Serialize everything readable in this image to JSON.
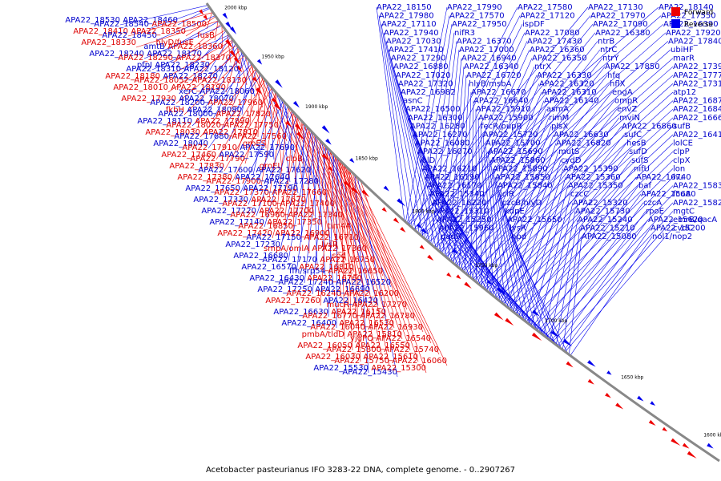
{
  "caption": "Acetobacter pasteurianus IFO 3283-22 DNA, complete genome. - 0..2907267",
  "legend": [
    {
      "label": "Forward",
      "color": "#ee0000"
    },
    {
      "label": "Reverse",
      "color": "#0000ee"
    }
  ],
  "ticks": [
    "2000 kbp",
    "1950 kbp",
    "1900 kbp",
    "1850 kbp",
    "1800 kbp",
    "1750 kbp",
    "1700 kbp",
    "1650 kbp",
    "1600 kbp"
  ],
  "colors": {
    "forward": "#ee0000",
    "reverse": "#0000ee",
    "backbone": "#888888",
    "forward_text": "#dd0000",
    "reverse_text": "#0000cc"
  },
  "labels": [
    {
      "t": "APA22_18530",
      "s": "r",
      "a": 0.002
    },
    {
      "t": "APA22_18540",
      "s": "r",
      "a": 0.01
    },
    {
      "t": "APA22_18460",
      "s": "r",
      "a": 0.012
    },
    {
      "t": "APA22_18500",
      "s": "f",
      "a": 0.02
    },
    {
      "t": "APA22_18410",
      "s": "f",
      "a": 0.022
    },
    {
      "t": "APA22_18450",
      "s": "r",
      "a": 0.03
    },
    {
      "t": "APA22_18350",
      "s": "f",
      "a": 0.032
    },
    {
      "t": "fusB",
      "s": "f",
      "a": 0.04
    },
    {
      "t": "APA22_18330",
      "s": "f",
      "a": 0.042
    },
    {
      "t": "amtB",
      "s": "r",
      "a": 0.043
    },
    {
      "t": "hlyD/fusE",
      "s": "f",
      "a": 0.05
    },
    {
      "t": "APA22_18360",
      "s": "f",
      "a": 0.052
    },
    {
      "t": "APA22_18240",
      "s": "r",
      "a": 0.054
    },
    {
      "t": "APA22_18290",
      "s": "f",
      "a": 0.064
    },
    {
      "t": "APA22_18170",
      "s": "r",
      "a": 0.066
    },
    {
      "t": "APA22_18370",
      "s": "f",
      "a": 0.07
    },
    {
      "t": "pfpI",
      "s": "r",
      "a": 0.076
    },
    {
      "t": "APA22_18310",
      "s": "r",
      "a": 0.078
    },
    {
      "t": "APA22_18230",
      "s": "r",
      "a": 0.08
    },
    {
      "t": "APA22_18120",
      "s": "r",
      "a": 0.082
    },
    {
      "t": "APA22_18180",
      "s": "f",
      "a": 0.088
    },
    {
      "t": "APA22_18052",
      "s": "f",
      "a": 0.09
    },
    {
      "t": "APA22_18270",
      "s": "r",
      "a": 0.096
    },
    {
      "t": "APA22_18130",
      "s": "f",
      "a": 0.098
    },
    {
      "t": "APA22_18010",
      "s": "f",
      "a": 0.1
    },
    {
      "t": "xerC",
      "s": "r",
      "a": 0.104
    },
    {
      "t": "APA22_18190",
      "s": "f",
      "a": 0.106
    },
    {
      "t": "APA22_18060",
      "s": "r",
      "a": 0.11
    },
    {
      "t": "APA22_17930",
      "s": "f",
      "a": 0.112
    },
    {
      "t": "APA22_18200",
      "s": "r",
      "a": 0.118
    },
    {
      "t": "APA22_18070",
      "s": "r",
      "a": 0.12
    },
    {
      "t": "APA22_17960",
      "s": "f",
      "a": 0.122
    },
    {
      "t": "fkbH",
      "s": "f",
      "a": 0.124
    },
    {
      "t": "APA22_18000",
      "s": "r",
      "a": 0.13
    },
    {
      "t": "APA22_18080",
      "s": "r",
      "a": 0.136
    },
    {
      "t": "APA22_17820",
      "s": "f",
      "a": 0.138
    },
    {
      "t": "APA22_18110",
      "s": "r",
      "a": 0.144
    },
    {
      "t": "APA22_18020",
      "s": "f",
      "a": 0.146
    },
    {
      "t": "APA22_17890",
      "s": "f",
      "a": 0.148
    },
    {
      "t": "APA22_17750",
      "s": "f",
      "a": 0.15
    },
    {
      "t": "APA22_18030",
      "s": "f",
      "a": 0.156
    },
    {
      "t": "APA22_17680",
      "s": "r",
      "a": 0.158
    },
    {
      "t": "APA22_17810",
      "s": "f",
      "a": 0.166
    },
    {
      "t": "APA22_17560",
      "s": "f",
      "a": 0.168
    },
    {
      "t": "APA22_18040",
      "s": "r",
      "a": 0.17
    },
    {
      "t": "APA22_17910",
      "s": "f",
      "a": 0.176
    },
    {
      "t": "groES",
      "s": "f",
      "a": 0.178
    },
    {
      "t": "APA22_17690",
      "s": "r",
      "a": 0.18
    },
    {
      "t": "APA22_17460",
      "s": "f",
      "a": 0.182
    },
    {
      "t": "APA22_17790",
      "s": "f",
      "a": 0.19
    },
    {
      "t": "APA22_17590",
      "s": "r",
      "a": 0.192
    },
    {
      "t": "clpB",
      "s": "f",
      "a": 0.194
    },
    {
      "t": "APA22_17830",
      "s": "f",
      "a": 0.2
    },
    {
      "t": "APA22_17600",
      "s": "r",
      "a": 0.202
    },
    {
      "t": "groEL",
      "s": "f",
      "a": 0.208
    },
    {
      "t": "APA22_17620",
      "s": "r",
      "a": 0.21
    },
    {
      "t": "APA22_17380",
      "s": "f",
      "a": 0.212
    },
    {
      "t": "APA22_17900",
      "s": "f",
      "a": 0.214
    },
    {
      "t": "APA22_17640",
      "s": "r",
      "a": 0.22
    },
    {
      "t": "APA22_17280",
      "s": "r",
      "a": 0.222
    },
    {
      "t": "APA22_17650",
      "s": "r",
      "a": 0.23
    },
    {
      "t": "APA22_17370",
      "s": "f",
      "a": 0.232
    },
    {
      "t": "APA22_17190",
      "s": "r",
      "a": 0.234
    },
    {
      "t": "APA22_17660",
      "s": "f",
      "a": 0.24
    },
    {
      "t": "APA22_17330",
      "s": "r",
      "a": 0.242
    },
    {
      "t": "APA22_17100",
      "s": "f",
      "a": 0.244
    },
    {
      "t": "APA22_17670",
      "s": "f",
      "a": 0.25
    },
    {
      "t": "APA22_17400",
      "s": "f",
      "a": 0.252
    },
    {
      "t": "APA22_17220",
      "s": "r",
      "a": 0.254
    },
    {
      "t": "APA22_16960",
      "s": "f",
      "a": 0.256
    },
    {
      "t": "APA22_17700",
      "s": "f",
      "a": 0.26
    },
    {
      "t": "APA22_17340",
      "s": "f",
      "a": 0.262
    },
    {
      "t": "APA22_17140",
      "s": "r",
      "a": 0.264
    },
    {
      "t": "APA22_16850",
      "s": "f",
      "a": 0.266
    },
    {
      "t": "APA22_17350",
      "s": "f",
      "a": 0.274
    },
    {
      "t": "tim44",
      "s": "f",
      "a": 0.276
    },
    {
      "t": "APA22_17420",
      "s": "f",
      "a": 0.28
    },
    {
      "t": "APA22_17150",
      "s": "r",
      "a": 0.282
    },
    {
      "t": "APA22_16900",
      "s": "f",
      "a": 0.284
    },
    {
      "t": "APA22_16710",
      "s": "f",
      "a": 0.286
    },
    {
      "t": "APA22_17230",
      "s": "r",
      "a": 0.29
    },
    {
      "t": "smpA/omlA",
      "s": "f",
      "a": 0.292
    },
    {
      "t": "lysR",
      "s": "f",
      "a": 0.294
    },
    {
      "t": "APA22_17360",
      "s": "f",
      "a": 0.298
    },
    {
      "t": "APA22_16680",
      "s": "r",
      "a": 0.3
    },
    {
      "t": "APA22_17170",
      "s": "r",
      "a": 0.302
    },
    {
      "t": "sod",
      "s": "f",
      "a": 0.306
    },
    {
      "t": "APA22_16750",
      "s": "f",
      "a": 0.308
    },
    {
      "t": "APA22_16570",
      "s": "r",
      "a": 0.31
    },
    {
      "t": "ffh/srp54",
      "s": "r",
      "a": 0.312
    },
    {
      "t": "APA22_16810",
      "s": "f",
      "a": 0.318
    },
    {
      "t": "APA22_16650",
      "s": "f",
      "a": 0.32
    },
    {
      "t": "APA22_16430",
      "s": "r",
      "a": 0.322
    },
    {
      "t": "APA22_17240",
      "s": "r",
      "a": 0.326
    },
    {
      "t": "APA22_16760",
      "s": "f",
      "a": 0.328
    },
    {
      "t": "APA22_16520",
      "s": "r",
      "a": 0.33
    },
    {
      "t": "APA22_17250",
      "s": "r",
      "a": 0.334
    },
    {
      "t": "APA22_16240",
      "s": "f",
      "a": 0.336
    },
    {
      "t": "APA22_16690",
      "s": "r",
      "a": 0.338
    },
    {
      "t": "APA22_16200",
      "s": "f",
      "a": 0.34
    },
    {
      "t": "APA22_17260",
      "s": "f",
      "a": 0.344
    },
    {
      "t": "mucR",
      "s": "f",
      "a": 0.346
    },
    {
      "t": "APA22_16420",
      "s": "r",
      "a": 0.348
    },
    {
      "t": "APA22_17270",
      "s": "f",
      "a": 0.35
    },
    {
      "t": "APA22_16630",
      "s": "r",
      "a": 0.352
    },
    {
      "t": "APA22_16770",
      "s": "f",
      "a": 0.354
    },
    {
      "t": "APA22_16150",
      "s": "f",
      "a": 0.356
    },
    {
      "t": "APA22_16780",
      "s": "f",
      "a": 0.358
    },
    {
      "t": "APA22_16400",
      "s": "r",
      "a": 0.36
    },
    {
      "t": "APA22_16040",
      "s": "f",
      "a": 0.362
    },
    {
      "t": "APA22_16530",
      "s": "f",
      "a": 0.364
    },
    {
      "t": "APA22_16930",
      "s": "f",
      "a": 0.366
    },
    {
      "t": "pmbA/tldD",
      "s": "f",
      "a": 0.368
    },
    {
      "t": "yjgPQ",
      "s": "f",
      "a": 0.37
    },
    {
      "t": "APA22_15810",
      "s": "f",
      "a": 0.372
    },
    {
      "t": "APA22_16540",
      "s": "f",
      "a": 0.374
    },
    {
      "t": "APA22_16050",
      "s": "f",
      "a": 0.376
    },
    {
      "t": "APA22_15800",
      "s": "f",
      "a": 0.378
    },
    {
      "t": "APA22_16550",
      "s": "f",
      "a": 0.38
    },
    {
      "t": "APA22_15740",
      "s": "f",
      "a": 0.382
    },
    {
      "t": "APA22_16030",
      "s": "f",
      "a": 0.386
    },
    {
      "t": "APA22_15750",
      "s": "f",
      "a": 0.388
    },
    {
      "t": "APA22_15610",
      "s": "f",
      "a": 0.392
    },
    {
      "t": "APA22_16060",
      "s": "f",
      "a": 0.396
    },
    {
      "t": "APA22_15530",
      "s": "r",
      "a": 0.398
    },
    {
      "t": "APA22_15430",
      "s": "r",
      "a": 0.404
    },
    {
      "t": "APA22_15300",
      "s": "f",
      "a": 0.41
    },
    {
      "t": "APA22_18150",
      "s": "r",
      "a": 0.5
    },
    {
      "t": "APA22_17990",
      "s": "r",
      "a": 0.502
    },
    {
      "t": "APA22_17580",
      "s": "r",
      "a": 0.504
    },
    {
      "t": "APA22_17130",
      "s": "r",
      "a": 0.506
    },
    {
      "t": "APA22_18140",
      "s": "r",
      "a": 0.508
    },
    {
      "t": "APA22_17980",
      "s": "r",
      "a": 0.51
    },
    {
      "t": "APA22_17570",
      "s": "r",
      "a": 0.512
    },
    {
      "t": "APA22_17120",
      "s": "r",
      "a": 0.514
    },
    {
      "t": "APA22_17970",
      "s": "r",
      "a": 0.518
    },
    {
      "t": "APA22_17550",
      "s": "r",
      "a": 0.52
    },
    {
      "t": "APA22_17110",
      "s": "r",
      "a": 0.522
    },
    {
      "t": "APA22_17950",
      "s": "r",
      "a": 0.526
    },
    {
      "t": "ispDF",
      "s": "r",
      "a": 0.528
    },
    {
      "t": "APA22_17090",
      "s": "r",
      "a": 0.53
    },
    {
      "t": "APA22_16390",
      "s": "r",
      "a": 0.532
    },
    {
      "t": "APA22_17940",
      "s": "r",
      "a": 0.536
    },
    {
      "t": "nifR3",
      "s": "r",
      "a": 0.538
    },
    {
      "t": "APA22_17080",
      "s": "r",
      "a": 0.54
    },
    {
      "t": "APA22_16380",
      "s": "r",
      "a": 0.542
    },
    {
      "t": "APA22_17920",
      "s": "r",
      "a": 0.546
    },
    {
      "t": "APA22_17030",
      "s": "r",
      "a": 0.548
    },
    {
      "t": "APA22_16370",
      "s": "r",
      "a": 0.55
    },
    {
      "t": "APA22_17430",
      "s": "r",
      "a": 0.552
    },
    {
      "t": "ntrB",
      "s": "r",
      "a": 0.556
    },
    {
      "t": "APA22_17840",
      "s": "r",
      "a": 0.558
    },
    {
      "t": "APA22_17410",
      "s": "r",
      "a": 0.56
    },
    {
      "t": "APA22_17000",
      "s": "r",
      "a": 0.562
    },
    {
      "t": "APA22_16360",
      "s": "r",
      "a": 0.564
    },
    {
      "t": "ntrC",
      "s": "r",
      "a": 0.566
    },
    {
      "t": "ubiHF",
      "s": "r",
      "a": 0.568
    },
    {
      "t": "APA22_17290",
      "s": "r",
      "a": 0.57
    },
    {
      "t": "APA22_16940",
      "s": "r",
      "a": 0.572
    },
    {
      "t": "APA22_16350",
      "s": "r",
      "a": 0.574
    },
    {
      "t": "ntrY",
      "s": "r",
      "a": 0.576
    },
    {
      "t": "marR",
      "s": "r",
      "a": 0.578
    },
    {
      "t": "APA22_16880",
      "s": "r",
      "a": 0.58
    },
    {
      "t": "APA22_16340",
      "s": "r",
      "a": 0.582
    },
    {
      "t": "ntrX",
      "s": "r",
      "a": 0.584
    },
    {
      "t": "APA22_17850",
      "s": "r",
      "a": 0.586
    },
    {
      "t": "APA22_17390",
      "s": "r",
      "a": 0.588
    },
    {
      "t": "APA22_17020",
      "s": "r",
      "a": 0.59
    },
    {
      "t": "APA22_16720",
      "s": "r",
      "a": 0.592
    },
    {
      "t": "APA22_16330",
      "s": "r",
      "a": 0.594
    },
    {
      "t": "hfq",
      "s": "r",
      "a": 0.596
    },
    {
      "t": "APA22_17770",
      "s": "r",
      "a": 0.598
    },
    {
      "t": "APA22_17320",
      "s": "r",
      "a": 0.6
    },
    {
      "t": "hlyB/msbA",
      "s": "r",
      "a": 0.602
    },
    {
      "t": "APA22_16320",
      "s": "r",
      "a": 0.604
    },
    {
      "t": "hflX",
      "s": "r",
      "a": 0.606
    },
    {
      "t": "APA22_17310",
      "s": "r",
      "a": 0.608
    },
    {
      "t": "APA22_16982",
      "s": "r",
      "a": 0.61
    },
    {
      "t": "APA22_16670",
      "s": "r",
      "a": 0.612
    },
    {
      "t": "APA22_16310",
      "s": "r",
      "a": 0.614
    },
    {
      "t": "engA",
      "s": "r",
      "a": 0.616
    },
    {
      "t": "atp12",
      "s": "r",
      "a": 0.618
    },
    {
      "t": "asnC",
      "s": "r",
      "a": 0.62
    },
    {
      "t": "APA22_16640",
      "s": "r",
      "a": 0.622
    },
    {
      "t": "APA22_16140",
      "s": "r",
      "a": 0.624
    },
    {
      "t": "ompR",
      "s": "r",
      "a": 0.626
    },
    {
      "t": "APA22_16870",
      "s": "r",
      "a": 0.628
    },
    {
      "t": "APA22_16500",
      "s": "r",
      "a": 0.63
    },
    {
      "t": "APA22_15910",
      "s": "r",
      "a": 0.632
    },
    {
      "t": "asmA",
      "s": "r",
      "a": 0.634
    },
    {
      "t": "envZ",
      "s": "r",
      "a": 0.636
    },
    {
      "t": "APA22_16840",
      "s": "r",
      "a": 0.638
    },
    {
      "t": "APA22_16300",
      "s": "r",
      "a": 0.64
    },
    {
      "t": "APA22_15900",
      "s": "r",
      "a": 0.642
    },
    {
      "t": "rimM",
      "s": "r",
      "a": 0.644
    },
    {
      "t": "mviN",
      "s": "r",
      "a": 0.646
    },
    {
      "t": "APA22_16660",
      "s": "r",
      "a": 0.648
    },
    {
      "t": "APA22_16280",
      "s": "r",
      "a": 0.65
    },
    {
      "t": "fecR/pupR",
      "s": "r",
      "a": 0.652
    },
    {
      "t": "plsX",
      "s": "r",
      "a": 0.654
    },
    {
      "t": "APA22_16860",
      "s": "r",
      "a": 0.656
    },
    {
      "t": "sufB",
      "s": "r",
      "a": 0.658
    },
    {
      "t": "APA22_16270",
      "s": "r",
      "a": 0.66
    },
    {
      "t": "APA22_15720",
      "s": "r",
      "a": 0.662
    },
    {
      "t": "APA22_16630",
      "s": "r",
      "a": 0.664
    },
    {
      "t": "sufC",
      "s": "r",
      "a": 0.666
    },
    {
      "t": "APA22_16410",
      "s": "r",
      "a": 0.668
    },
    {
      "t": "APA22_16080",
      "s": "r",
      "a": 0.67
    },
    {
      "t": "APA22_15700",
      "s": "r",
      "a": 0.672
    },
    {
      "t": "APA22_16820",
      "s": "r",
      "a": 0.674
    },
    {
      "t": "hesB",
      "s": "r",
      "a": 0.676
    },
    {
      "t": "lolCE",
      "s": "r",
      "a": 0.678
    },
    {
      "t": "APA22_16070",
      "s": "r",
      "a": 0.68
    },
    {
      "t": "APA22_15690",
      "s": "r",
      "a": 0.682
    },
    {
      "t": "mutS",
      "s": "r",
      "a": 0.684
    },
    {
      "t": "sufD",
      "s": "r",
      "a": 0.686
    },
    {
      "t": "clpP",
      "s": "r",
      "a": 0.688
    },
    {
      "t": "lolD",
      "s": "r",
      "a": 0.69
    },
    {
      "t": "APA22_15860",
      "s": "r",
      "a": 0.692
    },
    {
      "t": "cydD",
      "s": "r",
      "a": 0.694
    },
    {
      "t": "sufS",
      "s": "r",
      "a": 0.696
    },
    {
      "t": "clpX",
      "s": "r",
      "a": 0.698
    },
    {
      "t": "APA22_16210",
      "s": "r",
      "a": 0.7
    },
    {
      "t": "APA22_15890",
      "s": "r",
      "a": 0.702
    },
    {
      "t": "APA22_15390",
      "s": "r",
      "a": 0.704
    },
    {
      "t": "nifU",
      "s": "r",
      "a": 0.706
    },
    {
      "t": "lon",
      "s": "r",
      "a": 0.708
    },
    {
      "t": "APA22_16190",
      "s": "r",
      "a": 0.71
    },
    {
      "t": "APA22_15850",
      "s": "r",
      "a": 0.712
    },
    {
      "t": "APA22_15360",
      "s": "r",
      "a": 0.714
    },
    {
      "t": "APA22_16740",
      "s": "r",
      "a": 0.716
    },
    {
      "t": "hu",
      "s": "r",
      "a": 0.718
    },
    {
      "t": "APA22_16170",
      "s": "r",
      "a": 0.72
    },
    {
      "t": "APA22_15840",
      "s": "r",
      "a": 0.722
    },
    {
      "t": "APA22_15350",
      "s": "r",
      "a": 0.724
    },
    {
      "t": "baf",
      "s": "r",
      "a": 0.726
    },
    {
      "t": "APA22_15830",
      "s": "r",
      "a": 0.728
    },
    {
      "t": "APA22_15340",
      "s": "r",
      "a": 0.73
    },
    {
      "t": "iclR",
      "s": "r",
      "a": 0.732
    },
    {
      "t": "czcC",
      "s": "r",
      "a": 0.734
    },
    {
      "t": "APA22_15680",
      "s": "r",
      "a": 0.736
    },
    {
      "t": "fcuA",
      "s": "r",
      "a": 0.738
    },
    {
      "t": "APA22_16220",
      "s": "r",
      "a": 0.74
    },
    {
      "t": "czcB/hlyD",
      "s": "r",
      "a": 0.742
    },
    {
      "t": "APA22_15320",
      "s": "r",
      "a": 0.744
    },
    {
      "t": "czcA",
      "s": "r",
      "a": 0.746
    },
    {
      "t": "APA22_15820",
      "s": "r",
      "a": 0.748
    },
    {
      "t": "APA22_15310",
      "s": "r",
      "a": 0.75
    },
    {
      "t": "kdpE",
      "s": "r",
      "a": 0.752
    },
    {
      "t": "APA22_15730",
      "s": "r",
      "a": 0.754
    },
    {
      "t": "rpoE",
      "s": "r",
      "a": 0.756
    },
    {
      "t": "mgtC",
      "s": "r",
      "a": 0.758
    },
    {
      "t": "APA22_15250",
      "s": "r",
      "a": 0.76
    },
    {
      "t": "APA22_15650",
      "s": "r",
      "a": 0.762
    },
    {
      "t": "APA22_15240",
      "s": "r",
      "a": 0.764
    },
    {
      "t": "APA22_15620",
      "s": "r",
      "a": 0.766
    },
    {
      "t": "emrB/qacA",
      "s": "r",
      "a": 0.768
    },
    {
      "t": "APA22_15960",
      "s": "r",
      "a": 0.77
    },
    {
      "t": "lysR",
      "s": "r",
      "a": 0.772
    },
    {
      "t": "APA22_15210",
      "s": "r",
      "a": 0.774
    },
    {
      "t": "APA22_15200",
      "s": "r",
      "a": 0.776
    },
    {
      "t": "cvdC",
      "s": "r",
      "a": 0.778
    },
    {
      "t": "padR",
      "s": "r",
      "a": 0.78
    },
    {
      "t": "npd",
      "s": "r",
      "a": 0.782
    },
    {
      "t": "APA22_15080",
      "s": "r",
      "a": 0.784
    },
    {
      "t": "nol1/nop2",
      "s": "r",
      "a": 0.786
    }
  ]
}
